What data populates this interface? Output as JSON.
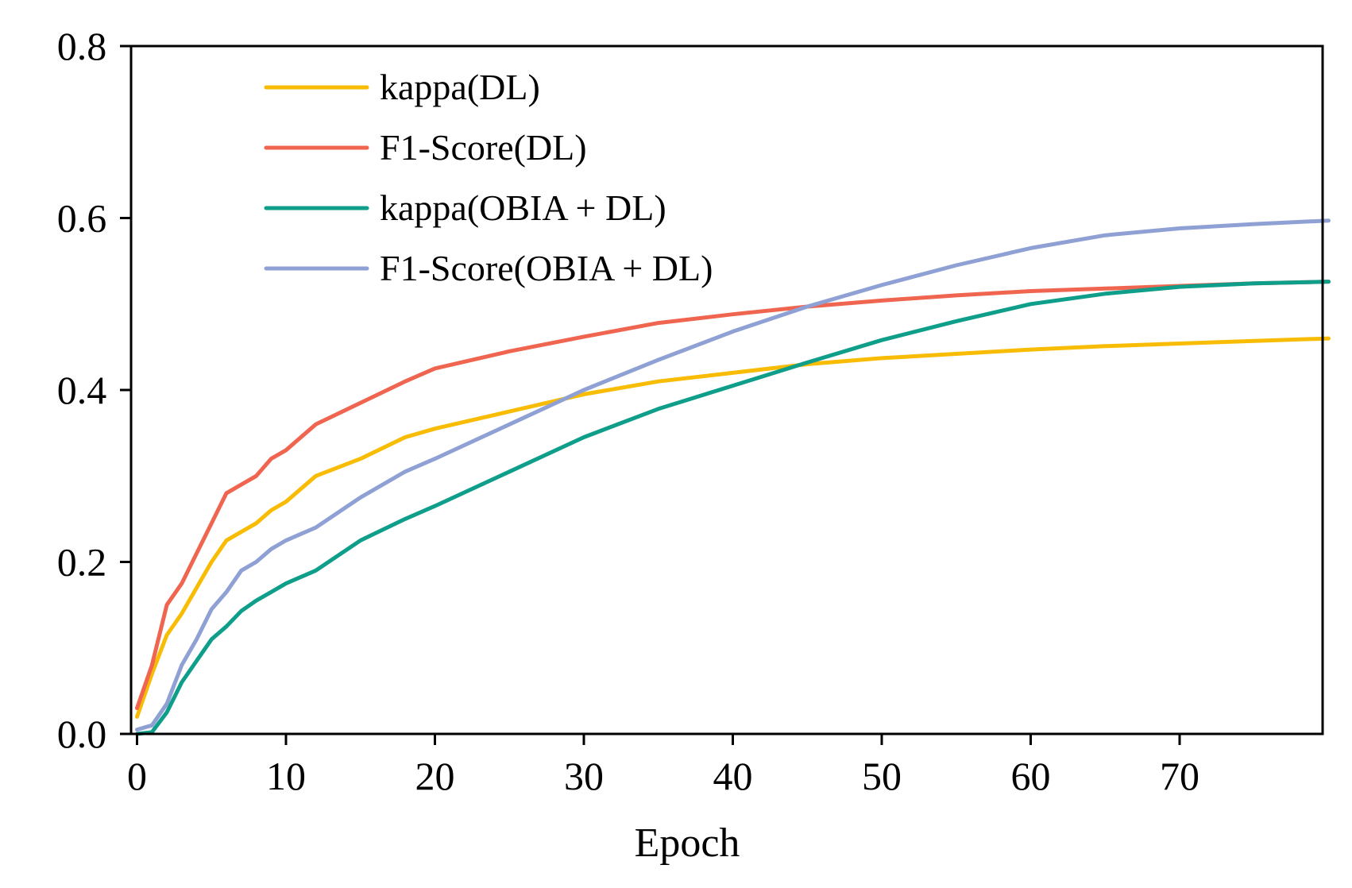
{
  "chart_data": {
    "type": "line",
    "title": "",
    "xlabel": "Epoch",
    "ylabel": "",
    "xlim": [
      0,
      80
    ],
    "ylim": [
      0.0,
      0.8
    ],
    "x_ticks": [
      0,
      10,
      20,
      30,
      40,
      50,
      60,
      70
    ],
    "x_tick_labels": [
      "0",
      "10",
      "20",
      "30",
      "40",
      "50",
      "60",
      "70"
    ],
    "y_ticks": [
      0.0,
      0.2,
      0.4,
      0.6,
      0.8
    ],
    "y_tick_labels": [
      "0.0",
      "0.2",
      "0.4",
      "0.6",
      "0.8"
    ],
    "grid": false,
    "legend_position": "top-left",
    "x": [
      0,
      1,
      2,
      3,
      4,
      5,
      6,
      7,
      8,
      9,
      10,
      12,
      15,
      18,
      20,
      25,
      30,
      35,
      40,
      45,
      50,
      55,
      60,
      65,
      70,
      75,
      80
    ],
    "series": [
      {
        "name": "kappa(DL)",
        "color": "#F8BC05",
        "values": [
          0.02,
          0.07,
          0.115,
          0.14,
          0.17,
          0.2,
          0.225,
          0.235,
          0.245,
          0.26,
          0.27,
          0.3,
          0.32,
          0.345,
          0.355,
          0.375,
          0.395,
          0.41,
          0.42,
          0.43,
          0.437,
          0.442,
          0.447,
          0.451,
          0.454,
          0.457,
          0.46
        ]
      },
      {
        "name": "F1-Score(DL)",
        "color": "#F0654F",
        "values": [
          0.03,
          0.08,
          0.15,
          0.175,
          0.21,
          0.245,
          0.28,
          0.29,
          0.3,
          0.32,
          0.33,
          0.36,
          0.385,
          0.41,
          0.425,
          0.445,
          0.462,
          0.478,
          0.488,
          0.497,
          0.504,
          0.51,
          0.515,
          0.518,
          0.521,
          0.524,
          0.526
        ]
      },
      {
        "name": "kappa(OBIA + DL)",
        "color": "#0E9E8A",
        "values": [
          0.0,
          0.002,
          0.025,
          0.06,
          0.085,
          0.11,
          0.125,
          0.143,
          0.155,
          0.165,
          0.175,
          0.19,
          0.225,
          0.25,
          0.265,
          0.305,
          0.345,
          0.378,
          0.405,
          0.432,
          0.458,
          0.48,
          0.5,
          0.512,
          0.52,
          0.524,
          0.526
        ]
      },
      {
        "name": "F1-Score(OBIA + DL)",
        "color": "#8FA1D4",
        "values": [
          0.005,
          0.01,
          0.035,
          0.08,
          0.11,
          0.145,
          0.165,
          0.19,
          0.2,
          0.215,
          0.225,
          0.24,
          0.275,
          0.305,
          0.32,
          0.36,
          0.4,
          0.435,
          0.468,
          0.497,
          0.522,
          0.545,
          0.565,
          0.58,
          0.588,
          0.593,
          0.597
        ]
      }
    ]
  }
}
